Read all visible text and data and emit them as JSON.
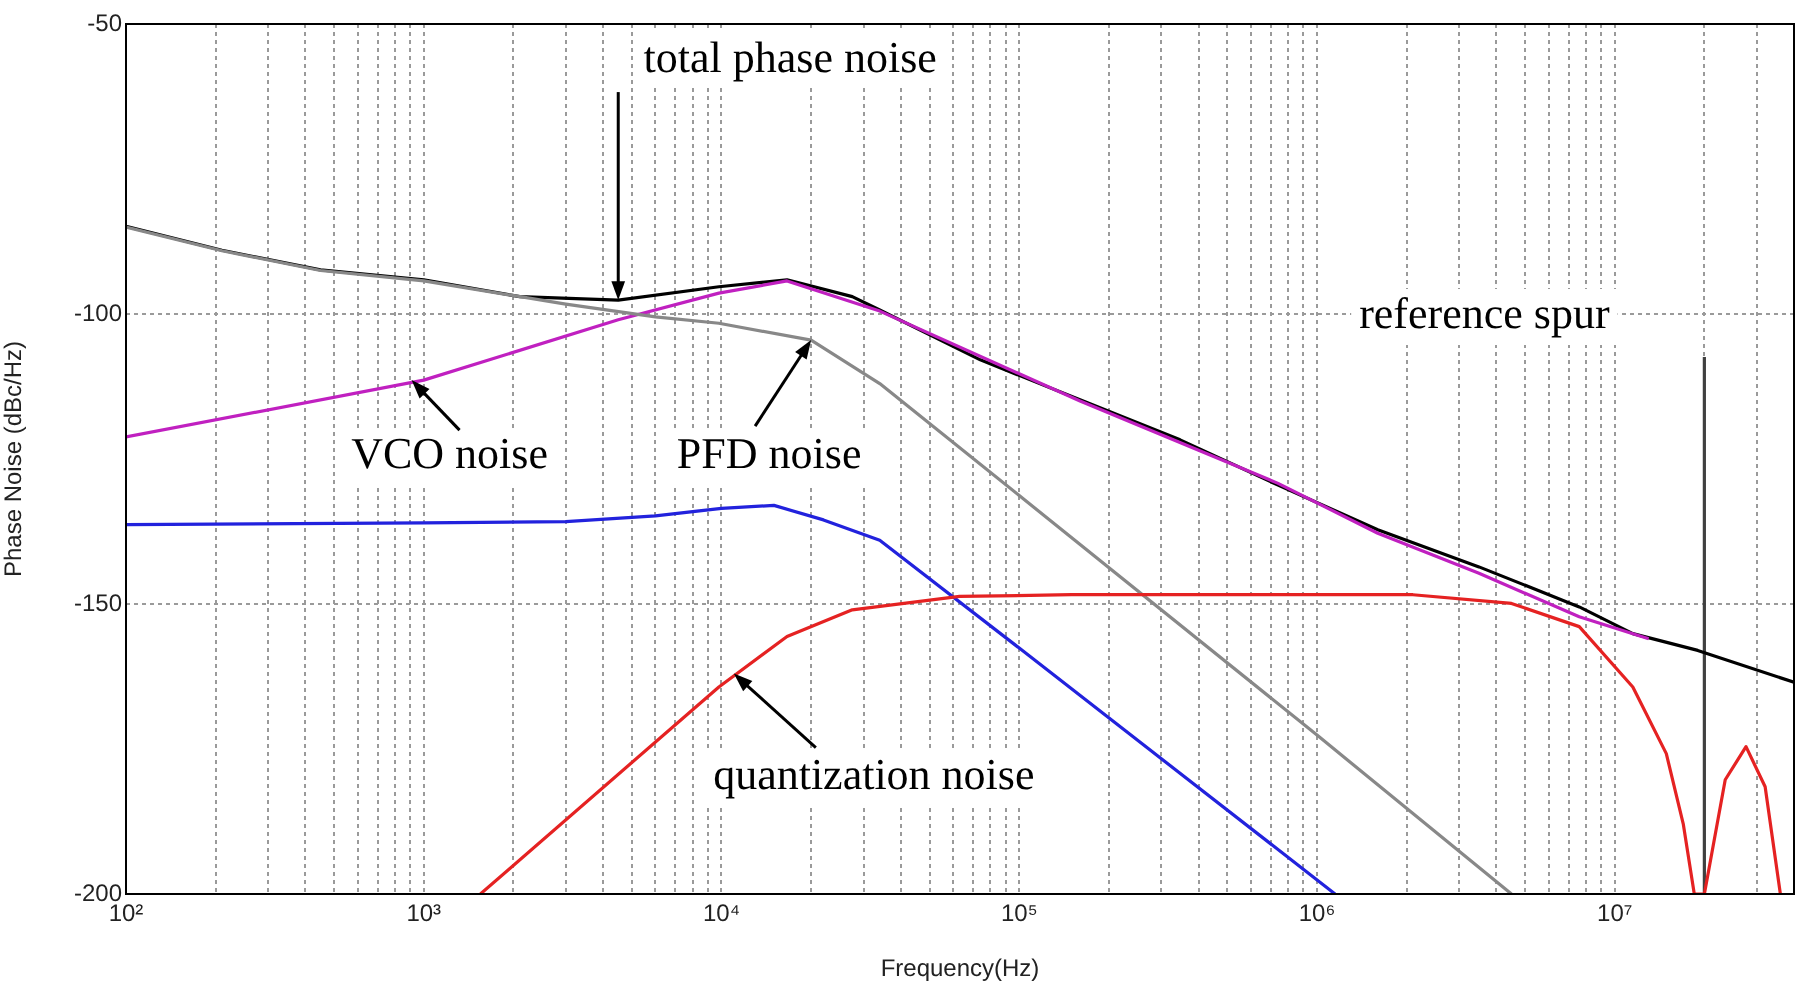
{
  "chart_data": {
    "type": "line",
    "xlabel": "Frequency(Hz)",
    "ylabel": "Phase Noise (dBc/Hz)",
    "log": "x",
    "grid": true,
    "marker": "none",
    "line_style": "solid",
    "xlim": [
      100,
      40000000
    ],
    "xticks": [
      {
        "value": 100,
        "label": "10²"
      },
      {
        "value": 200,
        "label": null
      },
      {
        "value": 300,
        "label": null
      },
      {
        "value": 400,
        "label": null
      },
      {
        "value": 500,
        "label": null
      },
      {
        "value": 600,
        "label": null
      },
      {
        "value": 700,
        "label": null
      },
      {
        "value": 800,
        "label": null
      },
      {
        "value": 900,
        "label": null
      },
      {
        "value": 1000,
        "label": "10³"
      },
      {
        "value": 2000,
        "label": null
      },
      {
        "value": 3000,
        "label": null
      },
      {
        "value": 4000,
        "label": null
      },
      {
        "value": 5000,
        "label": null
      },
      {
        "value": 6000,
        "label": null
      },
      {
        "value": 7000,
        "label": null
      },
      {
        "value": 8000,
        "label": null
      },
      {
        "value": 9000,
        "label": null
      },
      {
        "value": 10000,
        "label": "10⁴"
      },
      {
        "value": 20000,
        "label": null
      },
      {
        "value": 30000,
        "label": null
      },
      {
        "value": 40000,
        "label": null
      },
      {
        "value": 50000,
        "label": null
      },
      {
        "value": 60000,
        "label": null
      },
      {
        "value": 70000,
        "label": null
      },
      {
        "value": 80000,
        "label": null
      },
      {
        "value": 90000,
        "label": null
      },
      {
        "value": 100000,
        "label": "10⁵"
      },
      {
        "value": 200000,
        "label": null
      },
      {
        "value": 300000,
        "label": null
      },
      {
        "value": 400000,
        "label": null
      },
      {
        "value": 500000,
        "label": null
      },
      {
        "value": 600000,
        "label": null
      },
      {
        "value": 700000,
        "label": null
      },
      {
        "value": 800000,
        "label": null
      },
      {
        "value": 900000,
        "label": null
      },
      {
        "value": 1000000,
        "label": "10⁶"
      },
      {
        "value": 2000000,
        "label": null
      },
      {
        "value": 3000000,
        "label": null
      },
      {
        "value": 4000000,
        "label": null
      },
      {
        "value": 5000000,
        "label": null
      },
      {
        "value": 6000000,
        "label": null
      },
      {
        "value": 7000000,
        "label": null
      },
      {
        "value": 8000000,
        "label": null
      },
      {
        "value": 9000000,
        "label": null
      },
      {
        "value": 10000000,
        "label": "10⁷"
      },
      {
        "value": 20000000,
        "label": null
      },
      {
        "value": 30000000,
        "label": null
      }
    ],
    "ylim": [
      -200,
      -50
    ],
    "yticks": [
      -200,
      -150,
      -100,
      -50
    ],
    "series": [
      {
        "color": "#e52222",
        "x": [
          1550,
          9800,
          16600,
          27500,
          63000,
          150000,
          2100000,
          4500000,
          7600000,
          11500000,
          14900000,
          17000000,
          18500000,
          20000000,
          23500000,
          27600000,
          32000000,
          36000000
        ],
        "values": [
          -200,
          -164.3,
          -155.6,
          -151,
          -148.7,
          -148.4,
          -148.4,
          -149.9,
          -153.9,
          -164.3,
          -175.8,
          -188,
          -200,
          -200,
          -180.3,
          -174.6,
          -181.5,
          -200
        ]
      },
      {
        "color": "#2222dd",
        "x": [
          100,
          1000,
          3000,
          6000,
          10000,
          15000,
          22000,
          34000,
          100000,
          1150000
        ],
        "values": [
          -136.3,
          -136,
          -135.8,
          -134.8,
          -133.5,
          -133,
          -135.5,
          -139,
          -157.6,
          -200
        ]
      },
      {
        "color": "#888888",
        "x": [
          100,
          210,
          450,
          1000,
          3000,
          6000,
          9800,
          20000,
          34000,
          100000,
          1000000,
          4500000
        ],
        "values": [
          -85,
          -89.1,
          -92.5,
          -94.3,
          -98.3,
          -100.5,
          -101.6,
          -104.5,
          -112,
          -131.3,
          -172.6,
          -200
        ]
      },
      {
        "color": "#c020c0",
        "x": [
          100,
          1000,
          4500,
          9800,
          16600,
          34000,
          160000,
          740000,
          1600000,
          3500000,
          7600000,
          13000000
        ],
        "values": [
          -121.2,
          -111.4,
          -101,
          -96.4,
          -94.3,
          -99.5,
          -115,
          -129.2,
          -137.8,
          -144.7,
          -152.2,
          -156
        ]
      },
      {
        "color": "#000000",
        "x": [
          100,
          210,
          450,
          1000,
          2100,
          4500,
          9800,
          16600,
          27500,
          34000,
          74000,
          160000,
          347000,
          740000,
          1600000,
          3500000,
          7600000,
          11500000,
          19000000,
          40000000
        ],
        "values": [
          -84.9,
          -89,
          -92.4,
          -94.1,
          -97,
          -97.6,
          -95.3,
          -94.1,
          -97,
          -99.3,
          -107.9,
          -114.8,
          -121.7,
          -129.5,
          -137.2,
          -143.6,
          -150.5,
          -155.1,
          -158,
          -163.5
        ]
      },
      {
        "color": "#404040",
        "x": [
          20000000,
          20000000
        ],
        "values": [
          -200,
          -107.4
        ]
      }
    ],
    "annotations": [
      {
        "text": "total phase noise",
        "x": 4500,
        "y": -97.6
      },
      {
        "text": "VCO noise",
        "x": 910,
        "y": -111.4
      },
      {
        "text": "PFD noise",
        "x": 20000,
        "y": -104.5
      },
      {
        "text": "quantization noise",
        "x": 11000,
        "y": -162
      },
      {
        "text": "reference spur",
        "x": 20000000,
        "y": -107.4
      }
    ]
  }
}
